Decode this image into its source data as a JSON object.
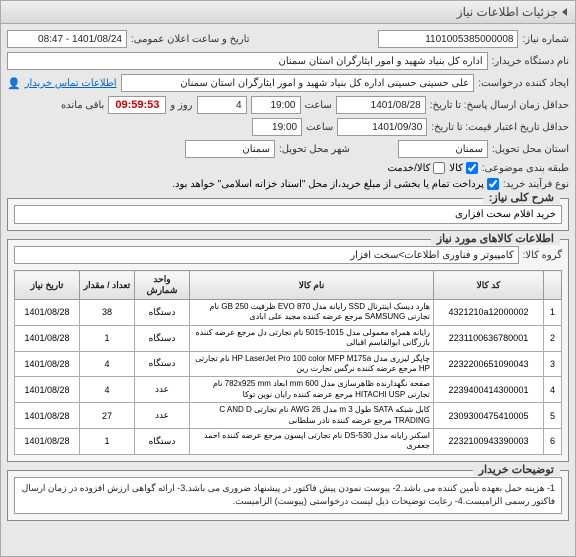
{
  "window": {
    "title": "جزئیات اطلاعات نیاز"
  },
  "header": {
    "need_no_label": "شماره نیاز:",
    "need_no": "1101005385000008",
    "public_time_label": "تاریخ و ساعت اعلان عمومی:",
    "public_time": "1401/08/24 - 08:47",
    "buyer_org_label": "نام دستگاه خریدار:",
    "buyer_org": "اداره کل بنیاد شهید و امور ایثارگران استان سمنان",
    "requester_label": "ایجاد کننده درخواست:",
    "requester": "علی حسینی حسینی اداره کل بنیاد شهید و امور ایثارگران استان سمنان",
    "contact_link": "اطلاعات تماس خریدار",
    "deadline_label": "حداقل زمان ارسال پاسخ: تا تاریخ:",
    "deadline_date": "1401/08/28",
    "deadline_time_label": "ساعت",
    "deadline_time": "19:00",
    "remaining_label_suffix": "روز و",
    "remaining_days": "4",
    "countdown": "09:59:53",
    "remaining_end": "باقی مانده",
    "validity_label": "حداقل تاریخ اعتبار قیمت: تا تاریخ:",
    "validity_date": "1401/09/30",
    "validity_time_label": "ساعت",
    "validity_time": "19:00",
    "province_label": "استان محل تحویل:",
    "province": "سمنان",
    "city_label": "شهر محل تحویل:",
    "city": "سمنان",
    "category_label": "طبقه بندی موضوعی:",
    "cat_goods": "کالا",
    "cat_service": "کالا/خدمت",
    "purchase_type_label": "نوع فرآیند خرید:",
    "purchase_note": "پرداخت تمام یا بخشی از مبلغ خرید،از محل \"اسناد خزانه اسلامی\" خواهد بود."
  },
  "need_section": {
    "title": "شرح کلی نیاز:",
    "desc": "خرید اقلام سخت افزاری"
  },
  "items_section": {
    "title": "اطلاعات کالاهای مورد نیاز",
    "group_label": "گروه کالا:",
    "group": "کامپیوتر و فناوری اطلاعات>سخت افزار",
    "columns": {
      "idx": "",
      "code": "کد کالا",
      "name": "نام کالا",
      "unit": "واحد شمارش",
      "qty": "تعداد / مقدار",
      "date": "تاریخ نیاز"
    },
    "rows": [
      {
        "idx": "1",
        "code": "4321210a12000002",
        "name": "هارد دیسک اینترنال SSD رایانه مدل EVO 870 ظرفیت GB 250 نام تجارتی SAMSUNG مرجع عرضه کننده مجید علی ابادی",
        "unit": "دستگاه",
        "qty": "38",
        "date": "1401/08/28"
      },
      {
        "idx": "2",
        "code": "2231100636780001",
        "name": "رایانه همراه معمولی مدل 1015-5015 نام تجارتی دل مرجع عرضه کننده بازرگانی ابوالقاسم اقبالی",
        "unit": "دستگاه",
        "qty": "1",
        "date": "1401/08/28"
      },
      {
        "idx": "3",
        "code": "2232200651090043",
        "name": "چاپگر لیزری مدل HP LaserJet Pro 100 color MFP M175a نام تجارتی HP مرجع عرضه کننده نرگس تجارت رین",
        "unit": "دستگاه",
        "qty": "4",
        "date": "1401/08/28"
      },
      {
        "idx": "4",
        "code": "2239400414300001",
        "name": "صفحه نگهدارنده ظاهرسازی مدل mm 600 ابعاد 782x925 mm نام تجارتی HITACHI USP مرجع عرضه کننده رایان نوین توکا",
        "unit": "عدد",
        "qty": "4",
        "date": "1401/08/28"
      },
      {
        "idx": "5",
        "code": "2309300475410005",
        "name": "کابل شبکه SATA طول m 3 مدل AWG 26 نام تجارتی C AND D TRADING مرجع عرضه کننده نادر سلطانی",
        "unit": "عدد",
        "qty": "27",
        "date": "1401/08/28"
      },
      {
        "idx": "6",
        "code": "2232100943390003",
        "name": "اسکنر رایانه مدل DS-530 نام تجارتی اپسون مرجع عرضه کننده احمد جعفری",
        "unit": "دستگاه",
        "qty": "1",
        "date": "1401/08/28"
      }
    ]
  },
  "notes": {
    "title": "توضیحات خریدار",
    "text": "1- هزینه حمل بعهده تأمین کننده می باشد.2- پیوست نمودن پیش فاکتور در پیشنهاد ضروری می باشد.3- ارائه گواهی ارزش افزوده در زمان ارسال فاکتور رسمی الزامیست.4- رعایت توضیحات ذیل لیست درخواستی (پیوست) الزامیست."
  }
}
